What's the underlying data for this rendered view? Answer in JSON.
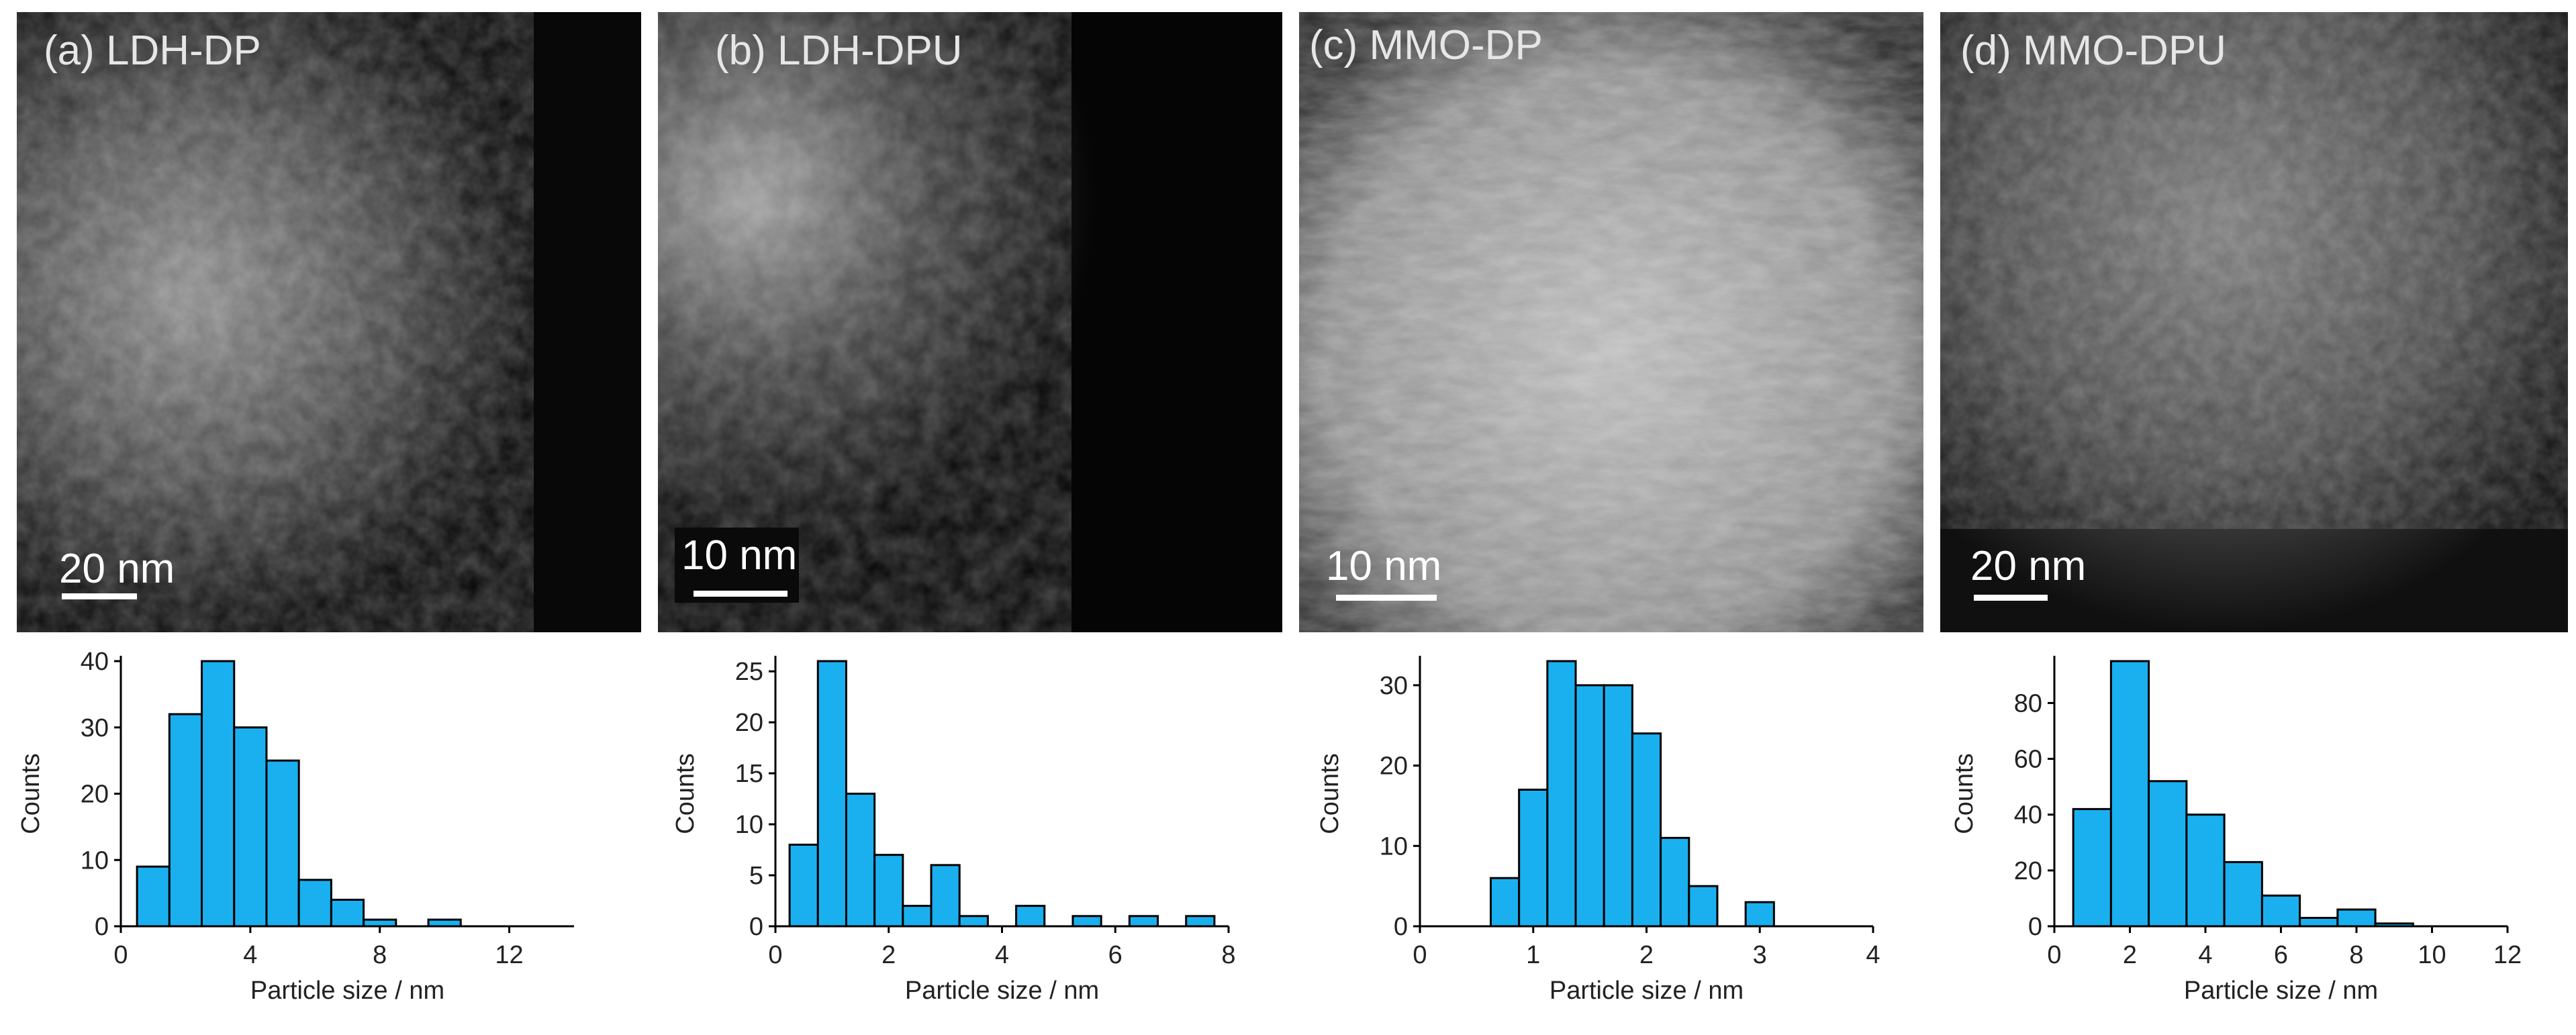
{
  "colors": {
    "bar_fill": "#1ab0ef",
    "bar_stroke": "#000000",
    "axis": "#000000"
  },
  "panels": [
    {
      "label": "(a) LDH-DP",
      "scale_bar": "20 nm",
      "image_desc": "dark-field electron micrograph"
    },
    {
      "label": "(b) LDH-DPU",
      "scale_bar": "10 nm",
      "image_desc": "dark-field electron micrograph"
    },
    {
      "label": "(c) MMO-DP",
      "scale_bar": "10 nm",
      "image_desc": "dark-field electron micrograph"
    },
    {
      "label": "(d) MMO-DPU",
      "scale_bar": "20 nm",
      "image_desc": "dark-field electron micrograph"
    }
  ],
  "chart_data": [
    {
      "type": "bar",
      "title": "",
      "xlabel": "Particle size / nm",
      "ylabel": "Counts",
      "xlim": [
        0,
        14
      ],
      "ylim": [
        0,
        40
      ],
      "xticks": [
        0,
        4,
        8,
        12
      ],
      "yticks": [
        0,
        10,
        20,
        30,
        40
      ],
      "bins": [
        1,
        2,
        3,
        4,
        5,
        6,
        7,
        8,
        9,
        10,
        11,
        12
      ],
      "values": [
        9,
        32,
        40,
        30,
        25,
        7,
        4,
        1,
        0,
        1,
        0,
        0
      ]
    },
    {
      "type": "bar",
      "title": "",
      "xlabel": "Particle size / nm",
      "ylabel": "Counts",
      "xlim": [
        0,
        8
      ],
      "ylim": [
        0,
        26
      ],
      "xticks": [
        0,
        2,
        4,
        6,
        8
      ],
      "yticks": [
        0,
        5,
        10,
        15,
        20,
        25
      ],
      "bins": [
        0.5,
        1,
        1.5,
        2,
        2.5,
        3,
        3.5,
        4,
        4.5,
        5,
        5.5,
        6,
        6.5,
        7,
        7.5
      ],
      "values": [
        8,
        26,
        13,
        7,
        2,
        6,
        1,
        0,
        2,
        0,
        1,
        0,
        1,
        0,
        1
      ]
    },
    {
      "type": "bar",
      "title": "",
      "xlabel": "Particle size / nm",
      "ylabel": "Counts",
      "xlim": [
        0,
        4
      ],
      "ylim": [
        0,
        33
      ],
      "xticks": [
        0,
        1,
        2,
        3,
        4
      ],
      "yticks": [
        0,
        10,
        20,
        30
      ],
      "bins": [
        0.75,
        1,
        1.25,
        1.5,
        1.75,
        2,
        2.25,
        2.5,
        2.75,
        3
      ],
      "values": [
        6,
        17,
        33,
        30,
        30,
        24,
        11,
        5,
        0,
        3
      ]
    },
    {
      "type": "bar",
      "title": "",
      "xlabel": "Particle size / nm",
      "ylabel": "Counts",
      "xlim": [
        0,
        12
      ],
      "ylim": [
        0,
        95
      ],
      "xticks": [
        0,
        2,
        4,
        6,
        8,
        10,
        12
      ],
      "yticks": [
        0,
        20,
        40,
        60,
        80
      ],
      "bins": [
        1,
        2,
        3,
        4,
        5,
        6,
        7,
        8,
        9
      ],
      "values": [
        42,
        95,
        52,
        40,
        23,
        11,
        3,
        6,
        1
      ]
    }
  ]
}
